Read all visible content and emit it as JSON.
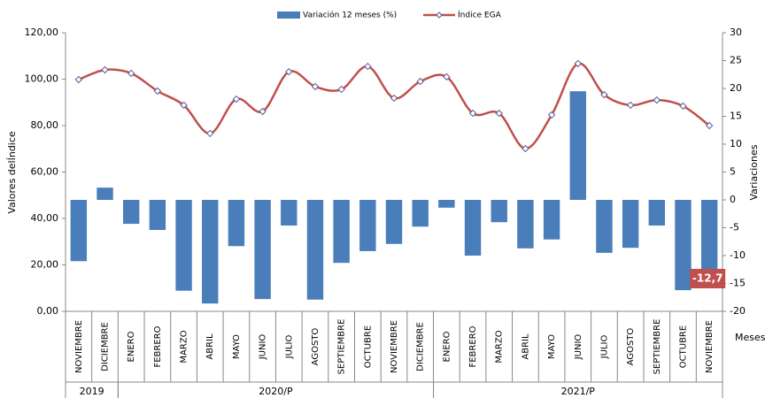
{
  "chart_data": {
    "type": "bar-line",
    "categories": [
      "NOVIEMBRE",
      "DICIEMBRE",
      "ENERO",
      "FEBRERO",
      "MARZO",
      "ABRIL",
      "MAYO",
      "JUNIO",
      "JULIO",
      "AGOSTO",
      "SEPTIEMBRE",
      "OCTUBRE",
      "NOVIEMBRE",
      "DICIEMBRE",
      "ENERO",
      "FEBRERO",
      "MARZO",
      "ABRIL",
      "MAYO",
      "JUNIO",
      "JULIO",
      "AGOSTO",
      "SEPTIEMBRE",
      "OCTUBRE",
      "NOVIEMBRE"
    ],
    "year_groups": [
      {
        "label": "2019",
        "count": 2
      },
      {
        "label": "2020/P",
        "count": 12
      },
      {
        "label": "2021/P",
        "count": 11
      }
    ],
    "series": [
      {
        "name": "Variación 12 meses (%)",
        "color": "#4a7ebb",
        "axis": "y2",
        "kind": "bar",
        "values": [
          -11.0,
          2.2,
          -4.3,
          -5.4,
          -16.3,
          -18.6,
          -8.3,
          -17.8,
          -4.6,
          -17.9,
          -11.3,
          -9.2,
          -7.9,
          -4.8,
          -1.4,
          -10.0,
          -4.0,
          -8.7,
          -7.1,
          19.5,
          -9.5,
          -8.6,
          -4.6,
          -16.2,
          -12.7
        ],
        "value_labels": [
          null,
          null,
          null,
          null,
          null,
          null,
          null,
          null,
          null,
          null,
          null,
          null,
          null,
          null,
          null,
          null,
          null,
          null,
          null,
          null,
          null,
          null,
          null,
          null,
          "-12,7"
        ]
      },
      {
        "name": "Índice EGA",
        "color": "#c0504d",
        "axis": "y",
        "kind": "line",
        "values": [
          99.8,
          104.0,
          102.5,
          94.9,
          88.8,
          76.6,
          91.4,
          86.1,
          103.2,
          96.8,
          95.6,
          105.5,
          91.8,
          99.0,
          101.0,
          85.3,
          85.3,
          70.1,
          84.6,
          106.7,
          93.3,
          88.8,
          91.0,
          88.4,
          80.0
        ]
      }
    ],
    "y_label": "Valores delÍndice",
    "y2_label": "Variaciones",
    "x_label": "Meses",
    "ylim": [
      0,
      120
    ],
    "yticks": [
      {
        "value": 0,
        "label": "0,00"
      },
      {
        "value": 20,
        "label": "20,00"
      },
      {
        "value": 40,
        "label": "40,00"
      },
      {
        "value": 60,
        "label": "60,00"
      },
      {
        "value": 80,
        "label": "80,00"
      },
      {
        "value": 100,
        "label": "100,00"
      },
      {
        "value": 120,
        "label": "120,00"
      }
    ],
    "y2lim": [
      -20,
      30
    ],
    "y2ticks": [
      -20,
      -15,
      -10,
      -5,
      0,
      5,
      10,
      15,
      20,
      25,
      30
    ],
    "legend": "top",
    "grid": false
  }
}
